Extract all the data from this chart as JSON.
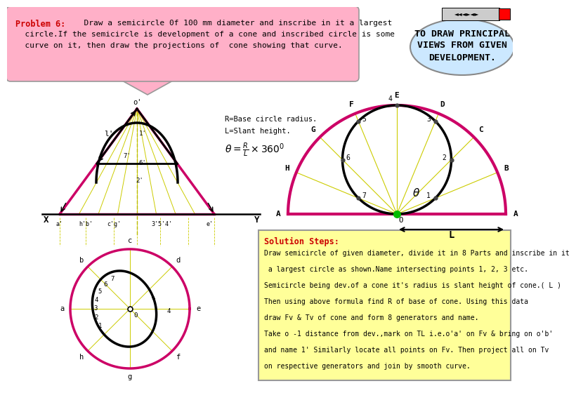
{
  "title_bold": "Problem 6:",
  "title_rest": "  Draw a semicircle 0f 100 mm diameter and inscribe in it a largest",
  "title_line2": "  circle.If the semicircle is development of a cone and inscribed circle is some",
  "title_line3": "  curve on it, then draw the projections of  cone showing that curve.",
  "right_text1": "TO DRAW PRINCIPAL",
  "right_text2": "VIEWS FROM GIVEN",
  "right_text3": "DEVELOPMENT.",
  "sol_title": "Solution Steps:",
  "sol_lines": [
    "Draw semicircle of given diameter, divide it in 8 Parts and inscribe in it",
    " a largest circle as shown.Name intersecting points 1, 2, 3 etc.",
    "Semicircle being dev.of a cone it's radius is slant height of cone.( L )",
    "Then using above formula find R of base of cone. Using this data",
    "draw Fv & Tv of cone and form 8 generators and name.",
    "Take o -1 distance from dev.,mark on TL i.e.o'a' on Fv & bring on o'b'",
    "and name 1' Similarly locate all points on Fv. Then project all on Tv",
    "on respective generators and join by smooth curve."
  ],
  "magenta": "#CC0066",
  "pink_bg": "#FFB0C8",
  "yellow_bg": "#FFFF99",
  "light_blue": "#CCE8FF",
  "black": "#000000",
  "olive": "#CCCC00",
  "dark_red": "#CC0000",
  "bg": "#FFFFFF"
}
